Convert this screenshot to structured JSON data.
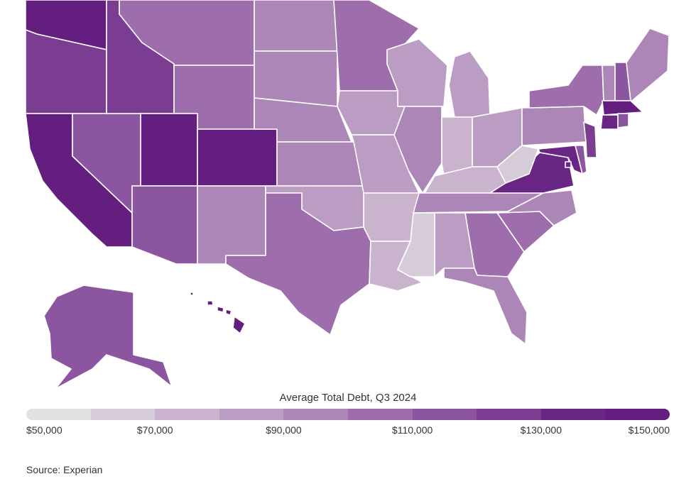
{
  "legend": {
    "title": "Average Total Debt, Q3 2024",
    "ticks": [
      "$50,000",
      "$70,000",
      "$90,000",
      "$110,000",
      "$130,000",
      "$150,000"
    ],
    "range": [
      50000,
      150000
    ],
    "colors": [
      "#e2e2e2",
      "#d6cbd8",
      "#c9b3cd",
      "#bb9dc3",
      "#ad86b8",
      "#9d6dac",
      "#8b55a0",
      "#7a3d92",
      "#6a2684",
      "#631e7f"
    ]
  },
  "source": "Source: Experian",
  "map_data": {
    "type": "choropleth",
    "unit": "USD",
    "states": {
      "WA": 145000,
      "OR": 122000,
      "CA": 145000,
      "ID": 120000,
      "NV": 115000,
      "MT": 105000,
      "WY": 105000,
      "UT": 145000,
      "CO": 145000,
      "AZ": 118000,
      "NM": 92000,
      "ND": 96000,
      "SD": 96000,
      "NE": 93000,
      "KS": 90000,
      "OK": 80000,
      "TX": 100000,
      "MN": 107000,
      "IA": 88000,
      "MO": 88000,
      "AR": 78000,
      "LA": 78000,
      "WI": 88000,
      "IL": 93000,
      "MI": 80000,
      "IN": 78000,
      "OH": 80000,
      "KY": 78000,
      "TN": 96000,
      "MS": 65000,
      "AL": 80000,
      "GA": 103000,
      "FL": 98000,
      "SC": 100000,
      "NC": 98000,
      "VA": 130000,
      "WV": 68000,
      "MD": 132000,
      "DE": 118000,
      "NJ": 125000,
      "PA": 95000,
      "NY": 103000,
      "CT": 130000,
      "RI": 118000,
      "MA": 145000,
      "VT": 98000,
      "NH": 118000,
      "ME": 92000,
      "DC": 135000,
      "AK": 117000,
      "HI": 145000
    }
  }
}
